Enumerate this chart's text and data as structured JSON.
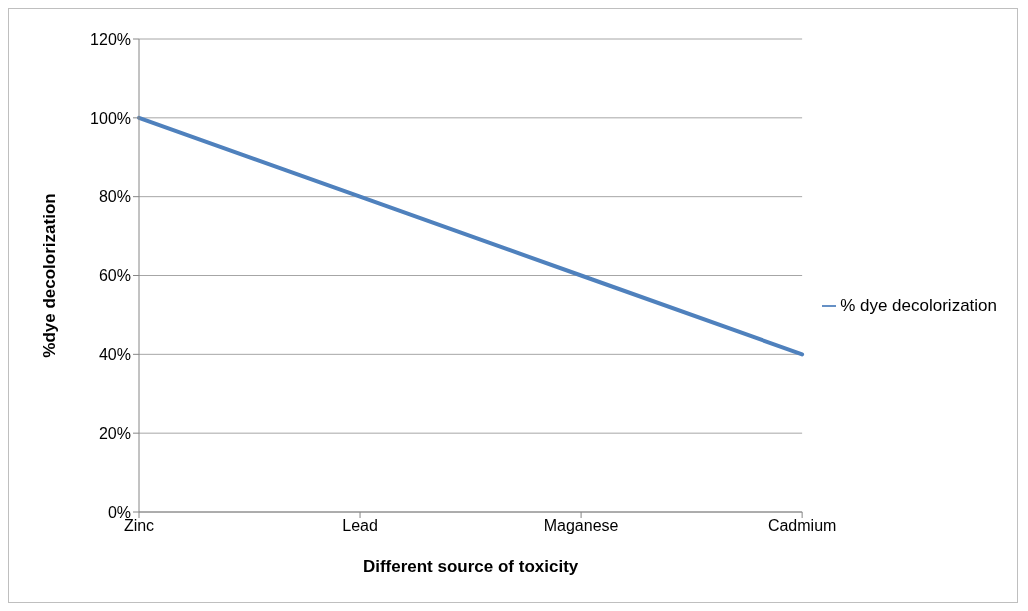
{
  "chart_data": {
    "type": "line",
    "xlabel": "Different source of toxicity",
    "ylabel": "%dye decolorization",
    "categories": [
      "Zinc",
      "Lead",
      "Maganese",
      "Cadmium"
    ],
    "series": [
      {
        "name": "% dye decolorization",
        "color": "#4f81bd",
        "values": [
          100,
          80,
          60,
          40
        ]
      }
    ],
    "ylim": [
      0,
      120
    ],
    "yticks": [
      {
        "value": 0,
        "label": "0%"
      },
      {
        "value": 20,
        "label": "20%"
      },
      {
        "value": 40,
        "label": "40%"
      },
      {
        "value": 60,
        "label": "60%"
      },
      {
        "value": 80,
        "label": "80%"
      },
      {
        "value": 100,
        "label": "100%"
      },
      {
        "value": 120,
        "label": "120%"
      }
    ],
    "grid": "y",
    "legend": "right",
    "marker": "none",
    "line_style": "solid"
  }
}
